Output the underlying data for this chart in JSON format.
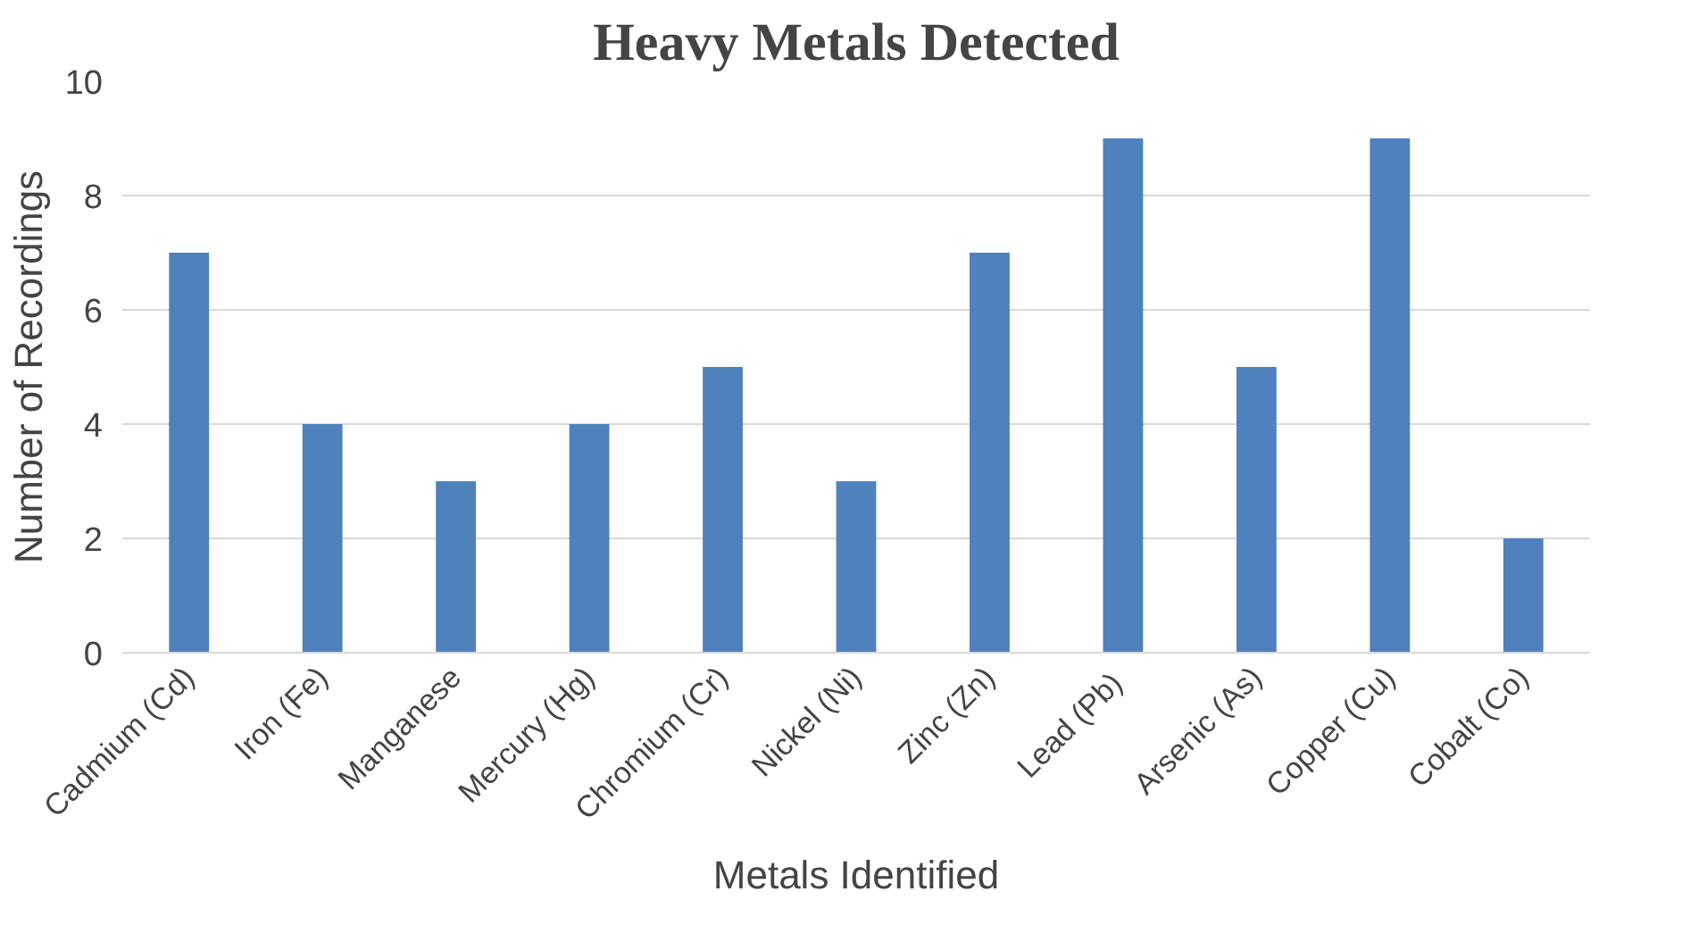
{
  "chart_data": {
    "type": "bar",
    "title": "Heavy Metals Detected",
    "xlabel": "Metals Identified",
    "ylabel": "Number of Recordings",
    "categories": [
      "Cadmium (Cd)",
      "Iron (Fe)",
      "Manganese",
      "Mercury (Hg)",
      "Chromium (Cr)",
      "Nickel (Ni)",
      "Zinc (Zn)",
      "Lead  (Pb)",
      "Arsenic (As)",
      "Copper (Cu)",
      "Cobalt (Co)"
    ],
    "values": [
      7,
      4,
      3,
      4,
      5,
      3,
      7,
      9,
      5,
      9,
      2
    ],
    "color": "#4f81bd",
    "ylim": [
      0,
      10
    ],
    "yticks": [
      0,
      2,
      4,
      6,
      8,
      10
    ],
    "grid": "y"
  }
}
